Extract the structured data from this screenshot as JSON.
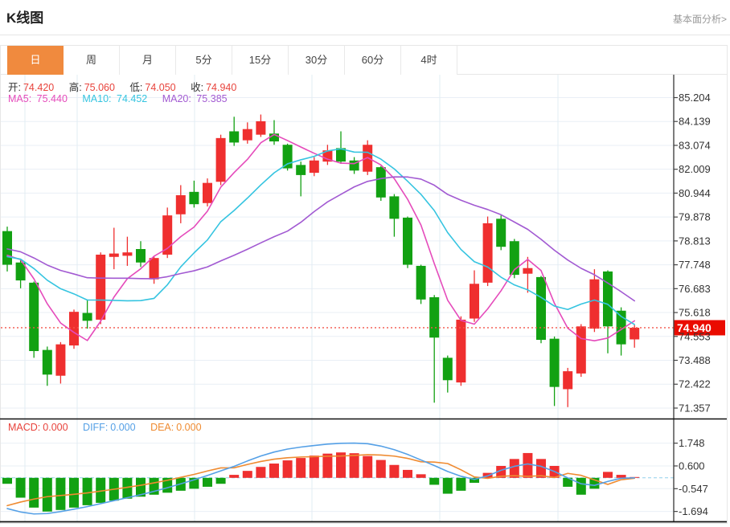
{
  "page": {
    "title": "K线图",
    "header_link": "基本面分析>"
  },
  "tabs": {
    "items": [
      {
        "label": "日",
        "active": true
      },
      {
        "label": "周",
        "active": false
      },
      {
        "label": "月",
        "active": false
      },
      {
        "label": "5分",
        "active": false
      },
      {
        "label": "15分",
        "active": false
      },
      {
        "label": "30分",
        "active": false
      },
      {
        "label": "60分",
        "active": false
      },
      {
        "label": "4时",
        "active": false
      }
    ]
  },
  "info": {
    "open_label": "开:",
    "open": "74.420",
    "high_label": "高:",
    "high": "75.060",
    "low_label": "低:",
    "low": "74.050",
    "close_label": "收:",
    "close": "74.940",
    "ma5_label": "MA5:",
    "ma5": "75.440",
    "ma10_label": "MA10:",
    "ma10": "74.452",
    "ma20_label": "MA20:",
    "ma20": "75.385"
  },
  "macd_info": {
    "macd_label": "MACD:",
    "macd": "0.000",
    "diff_label": "DIFF:",
    "diff": "0.000",
    "dea_label": "DEA:",
    "dea": "0.000"
  },
  "colors": {
    "up": "#ef2f2f",
    "down": "#12a112",
    "ma5": "#e54bbb",
    "ma10": "#35c4e0",
    "ma20": "#a25ad2",
    "diff_line": "#55a0e6",
    "dea_line": "#ef8b31",
    "grid": "#e9eff6",
    "vgrid": "#e2ecf3",
    "axis": "#444444",
    "tick_text": "#333333",
    "price_dotted": "#f4564b",
    "price_badge_bg": "#ea0b00",
    "price_badge_text": "#ffffff",
    "zero_dash": "#90cfeb",
    "separator": "#111111",
    "tab_active": "#f08a3e"
  },
  "chart_data": {
    "type": "candlestick_with_macd",
    "title": "K线图 (daily K-line)",
    "x_count": 48,
    "main_panel": {
      "y_ticks": [
        85.204,
        84.139,
        83.074,
        82.009,
        80.944,
        79.878,
        78.813,
        77.748,
        76.683,
        75.618,
        74.553,
        73.488,
        72.422,
        71.357
      ],
      "last_price": 74.94,
      "ohlc_display": {
        "open": 74.42,
        "high": 75.06,
        "low": 74.05,
        "close": 74.94
      },
      "ma_display": {
        "ma5": 75.44,
        "ma10": 74.452,
        "ma20": 75.385
      },
      "ma_periods": [
        5,
        10,
        20
      ],
      "ma_seed_closes": [
        79.6,
        79.4,
        79.2,
        79.0,
        78.8,
        78.6,
        78.5,
        78.4,
        78.3,
        78.2,
        78.15,
        78.1,
        78.05,
        78.0,
        77.95,
        78.0,
        78.2,
        78.4,
        78.5
      ],
      "candles": [
        [
          79.25,
          79.45,
          77.45,
          77.75
        ],
        [
          77.85,
          77.95,
          76.7,
          77.05
        ],
        [
          76.95,
          77.0,
          73.6,
          73.9
        ],
        [
          73.95,
          74.1,
          72.35,
          72.85
        ],
        [
          72.8,
          74.3,
          72.45,
          74.2
        ],
        [
          74.15,
          75.75,
          74.0,
          75.65
        ],
        [
          75.6,
          76.2,
          74.9,
          75.25
        ],
        [
          75.3,
          78.3,
          75.1,
          78.2
        ],
        [
          78.1,
          79.4,
          77.55,
          78.25
        ],
        [
          78.15,
          79.0,
          77.7,
          78.3
        ],
        [
          78.45,
          78.8,
          77.65,
          77.85
        ],
        [
          77.1,
          78.15,
          76.9,
          78.05
        ],
        [
          78.2,
          80.3,
          78.05,
          79.95
        ],
        [
          80.0,
          81.3,
          79.6,
          80.85
        ],
        [
          81.0,
          81.5,
          80.3,
          80.45
        ],
        [
          80.5,
          81.6,
          80.35,
          81.4
        ],
        [
          81.45,
          83.55,
          81.3,
          83.4
        ],
        [
          83.7,
          84.35,
          83.05,
          83.2
        ],
        [
          83.3,
          84.1,
          83.15,
          83.8
        ],
        [
          83.55,
          84.45,
          83.45,
          84.15
        ],
        [
          83.6,
          84.2,
          83.1,
          83.25
        ],
        [
          83.1,
          83.15,
          81.95,
          82.05
        ],
        [
          82.2,
          82.35,
          80.8,
          81.75
        ],
        [
          81.85,
          82.55,
          81.7,
          82.4
        ],
        [
          82.35,
          83.1,
          82.2,
          82.85
        ],
        [
          82.95,
          83.7,
          82.25,
          82.35
        ],
        [
          82.4,
          82.55,
          81.8,
          81.95
        ],
        [
          81.9,
          83.3,
          81.75,
          83.1
        ],
        [
          82.1,
          82.15,
          80.6,
          80.75
        ],
        [
          80.8,
          80.9,
          79.0,
          79.8
        ],
        [
          79.85,
          79.9,
          77.6,
          77.75
        ],
        [
          77.7,
          77.75,
          76.0,
          76.2
        ],
        [
          76.3,
          76.4,
          71.6,
          74.5
        ],
        [
          73.6,
          73.7,
          72.05,
          72.6
        ],
        [
          72.5,
          75.45,
          72.35,
          75.3
        ],
        [
          75.35,
          77.5,
          75.2,
          76.9
        ],
        [
          76.95,
          79.9,
          76.8,
          79.6
        ],
        [
          79.8,
          79.95,
          78.4,
          78.55
        ],
        [
          78.8,
          78.9,
          77.15,
          77.3
        ],
        [
          77.35,
          78.1,
          76.5,
          77.6
        ],
        [
          77.2,
          77.25,
          74.25,
          74.4
        ],
        [
          74.45,
          74.55,
          71.45,
          72.3
        ],
        [
          72.2,
          73.15,
          71.4,
          73.0
        ],
        [
          72.9,
          75.1,
          72.75,
          75.0
        ],
        [
          74.9,
          77.55,
          74.75,
          77.1
        ],
        [
          77.45,
          77.5,
          73.8,
          75.0
        ],
        [
          75.7,
          75.85,
          73.7,
          74.2
        ],
        [
          74.42,
          75.06,
          74.05,
          74.94
        ]
      ]
    },
    "macd_panel": {
      "y_ticks": [
        1.748,
        0.6,
        -0.547,
        -1.694
      ],
      "hist": [
        -0.3,
        -1.0,
        -1.5,
        -1.7,
        -1.62,
        -1.5,
        -1.38,
        -1.26,
        -1.15,
        -1.05,
        -0.95,
        -0.85,
        -0.75,
        -0.65,
        -0.55,
        -0.45,
        -0.3,
        0.15,
        0.35,
        0.55,
        0.72,
        0.88,
        1.0,
        1.12,
        1.22,
        1.28,
        1.24,
        1.1,
        0.9,
        0.65,
        0.4,
        0.18,
        -0.35,
        -0.8,
        -0.65,
        -0.25,
        0.25,
        0.6,
        0.95,
        1.25,
        0.95,
        0.6,
        -0.45,
        -0.85,
        -0.55,
        0.3,
        0.15,
        0.04
      ],
      "diff": [
        -1.55,
        -1.72,
        -1.82,
        -1.8,
        -1.7,
        -1.58,
        -1.45,
        -1.3,
        -1.15,
        -1.0,
        -0.85,
        -0.68,
        -0.5,
        -0.3,
        -0.1,
        0.12,
        0.35,
        0.58,
        0.85,
        1.1,
        1.3,
        1.45,
        1.55,
        1.63,
        1.7,
        1.74,
        1.75,
        1.72,
        1.6,
        1.42,
        1.18,
        0.9,
        0.62,
        0.32,
        0.08,
        -0.08,
        0.1,
        0.38,
        0.58,
        0.7,
        0.58,
        0.32,
        0.0,
        -0.3,
        -0.38,
        -0.18,
        -0.02,
        0.0
      ]
    }
  }
}
